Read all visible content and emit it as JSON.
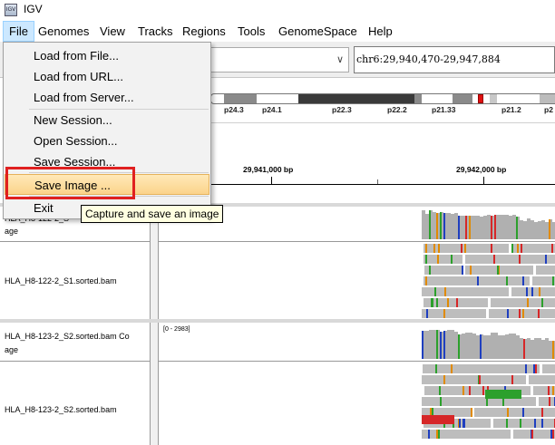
{
  "window": {
    "title": "IGV",
    "app_icon_text": "IGV"
  },
  "menubar": {
    "items": [
      {
        "label": "File"
      },
      {
        "label": "Genomes"
      },
      {
        "label": "View"
      },
      {
        "label": "Tracks"
      },
      {
        "label": "Regions"
      },
      {
        "label": "Tools"
      },
      {
        "label": "GenomeSpace"
      },
      {
        "label": "Help"
      }
    ]
  },
  "toolbar": {
    "genome_value": "",
    "locus": "chr6:29,940,470-29,947,884"
  },
  "file_menu": {
    "items": [
      {
        "label": "Load from File..."
      },
      {
        "label": "Load from URL..."
      },
      {
        "label": "Load from Server..."
      },
      {
        "label": "New Session..."
      },
      {
        "label": "Open Session..."
      },
      {
        "label": "Save Session..."
      },
      {
        "label": "Save Image ..."
      },
      {
        "label": "Exit"
      }
    ],
    "highlighted": "Save Image ..."
  },
  "tooltip": "Capture and save an image",
  "ideogram": {
    "bands": [
      "p24.3",
      "p24.1",
      "p22.3",
      "p22.2",
      "p21.33",
      "p21.2",
      "p2"
    ],
    "marker_color": "#e01010"
  },
  "ruler": {
    "labels": [
      "29,941,000 bp",
      "29,942,000 bp"
    ]
  },
  "tracks": {
    "panel1": {
      "coverage_name_line1": "HLA_H8-122-2_S",
      "coverage_name_line2": "age",
      "alignment_name": "HLA_H8-122-2_S1.sorted.bam"
    },
    "panel2": {
      "coverage_name_line1": "HLA_H8-123-2_S2.sorted.bam Co",
      "coverage_name_line2": "age",
      "range": "[0 - 2983]",
      "alignment_name": "HLA_H8-123-2_S2.sorted.bam"
    }
  },
  "colors": {
    "menu_active": "#cce8ff",
    "menu_hover": "#fbd38b",
    "highlight_border": "#e02020",
    "read_grey": "#bdbdbd",
    "mismatch_red": "#d62728",
    "mismatch_green": "#2ca02c",
    "mismatch_blue": "#1f3fbf",
    "mismatch_orange": "#e08a00"
  }
}
